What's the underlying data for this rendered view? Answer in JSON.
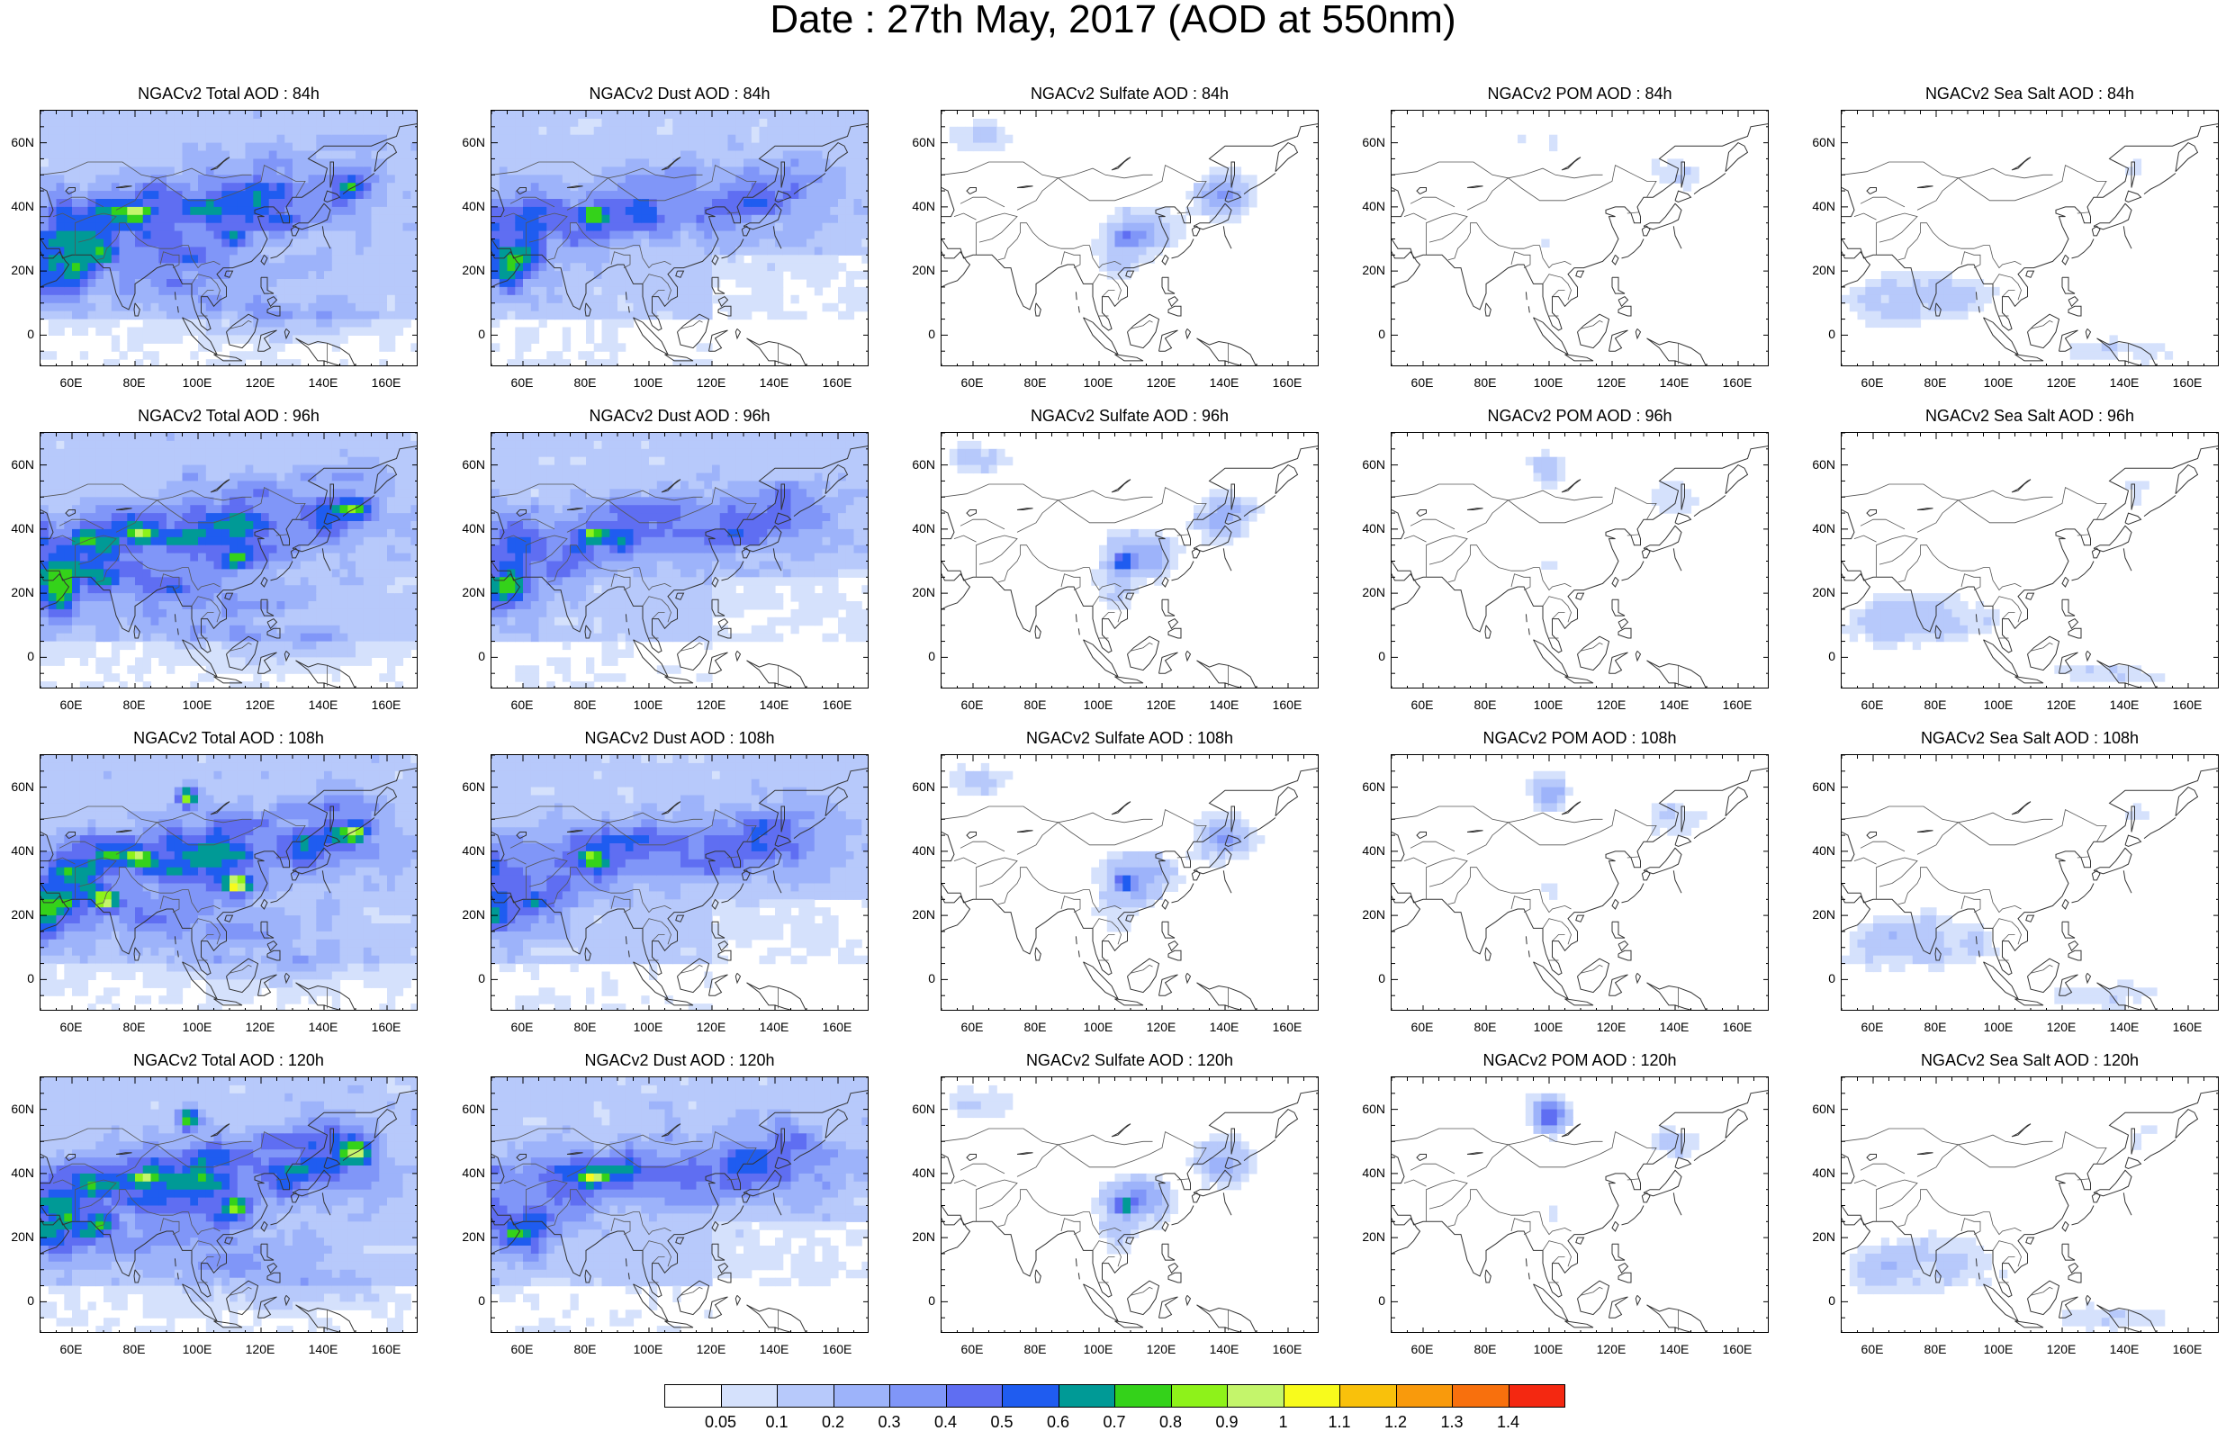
{
  "title": "Date : 27th May, 2017 (AOD at 550nm)",
  "species": [
    "Total",
    "Dust",
    "Sulfate",
    "POM",
    "Sea Salt"
  ],
  "lead_times": [
    "84h",
    "96h",
    "108h",
    "120h"
  ],
  "panel_titles": [
    [
      "NGACv2 Total AOD : 84h",
      "NGACv2 Dust AOD : 84h",
      "NGACv2 Sulfate AOD : 84h",
      "NGACv2 POM AOD : 84h",
      "NGACv2 Sea Salt AOD : 84h"
    ],
    [
      "NGACv2 Total AOD : 96h",
      "NGACv2 Dust AOD : 96h",
      "NGACv2 Sulfate AOD : 96h",
      "NGACv2 POM AOD : 96h",
      "NGACv2 Sea Salt AOD : 96h"
    ],
    [
      "NGACv2 Total AOD : 108h",
      "NGACv2 Dust AOD : 108h",
      "NGACv2 Sulfate AOD : 108h",
      "NGACv2 POM AOD : 108h",
      "NGACv2 Sea Salt AOD : 108h"
    ],
    [
      "NGACv2 Total AOD : 120h",
      "NGACv2 Dust AOD : 120h",
      "NGACv2 Sulfate AOD : 120h",
      "NGACv2 POM AOD : 120h",
      "NGACv2 Sea Salt  AOD : 120h"
    ]
  ],
  "map": {
    "lon_range": [
      50,
      170
    ],
    "lat_range": [
      -10,
      70
    ],
    "lat_ticks": [
      {
        "value": 60,
        "label": "60N"
      },
      {
        "value": 40,
        "label": "40N"
      },
      {
        "value": 20,
        "label": "20N"
      },
      {
        "value": 0,
        "label": "0"
      }
    ],
    "lon_ticks": [
      {
        "value": 60,
        "label": "60E"
      },
      {
        "value": 80,
        "label": "80E"
      },
      {
        "value": 100,
        "label": "100E"
      },
      {
        "value": 120,
        "label": "120E"
      },
      {
        "value": 140,
        "label": "140E"
      },
      {
        "value": 160,
        "label": "160E"
      }
    ]
  },
  "colorbar": {
    "labels": [
      "0.05",
      "0.1",
      "0.2",
      "0.3",
      "0.4",
      "0.5",
      "0.6",
      "0.7",
      "0.8",
      "0.9",
      "1",
      "1.1",
      "1.2",
      "1.3",
      "1.4"
    ],
    "colors": [
      "#ffffff",
      "#d5e1fc",
      "#b7c9fb",
      "#9db3fa",
      "#8096f8",
      "#5f6ef2",
      "#1f5cf0",
      "#009a96",
      "#34d21a",
      "#8ef21a",
      "#c4f56b",
      "#f8fb1c",
      "#f9c10b",
      "#f99a0c",
      "#f8700d",
      "#f42811"
    ]
  }
}
